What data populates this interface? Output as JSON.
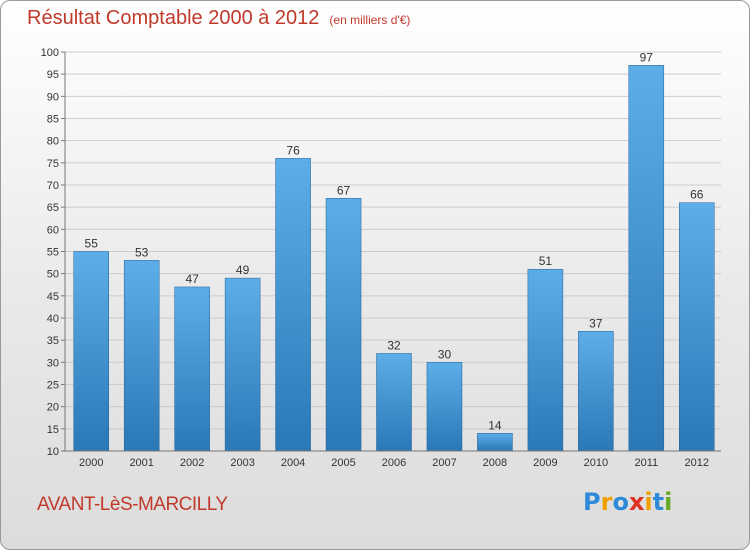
{
  "header": {
    "title": "Résultat Comptable 2000 à 2012",
    "unit": "(en milliers d'€)"
  },
  "footer": {
    "city": "AVANT-LèS-MARCILLY",
    "logo": {
      "letters": [
        "P",
        "r",
        "o",
        "x",
        "i",
        "t",
        "i"
      ],
      "colors": [
        "#2e8ad8",
        "#f0a000",
        "#2e8ad8",
        "#e03020",
        "#f0a000",
        "#2e8ad8",
        "#66aa22"
      ]
    }
  },
  "colors": {
    "bar_top": "#5daee8",
    "bar_bottom": "#2a78b6",
    "title": "#c0392b"
  },
  "chart_data": {
    "type": "bar",
    "categories": [
      "2000",
      "2001",
      "2002",
      "2003",
      "2004",
      "2005",
      "2006",
      "2007",
      "2008",
      "2009",
      "2010",
      "2011",
      "2012"
    ],
    "values": [
      55,
      53,
      47,
      49,
      76,
      67,
      32,
      30,
      14,
      51,
      37,
      97,
      66
    ],
    "ylim": [
      10,
      100
    ],
    "yticks": [
      10,
      15,
      20,
      25,
      30,
      35,
      40,
      45,
      50,
      55,
      60,
      65,
      70,
      75,
      80,
      85,
      90,
      95,
      100
    ],
    "grid": "horizontal",
    "data_labels": true
  }
}
